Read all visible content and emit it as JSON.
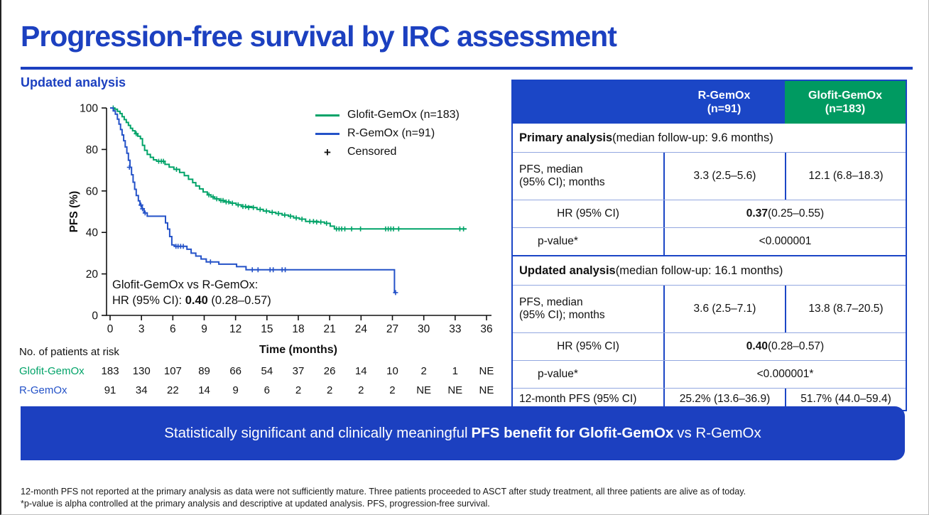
{
  "title": "Progression-free survival by IRC assessment",
  "subtitle": "Updated analysis",
  "colors": {
    "brand_blue": "#1c40c0",
    "table_blue": "#1b46c6",
    "header_green": "#009a61",
    "curve_green": "#00a368",
    "curve_blue": "#2452c8"
  },
  "chart_data": {
    "type": "line",
    "subtype": "kaplan-meier-step",
    "title": "",
    "xlabel": "Time (months)",
    "ylabel": "PFS (%)",
    "xlim": [
      0,
      36
    ],
    "ylim": [
      0,
      100
    ],
    "xticks": [
      0,
      3,
      6,
      9,
      12,
      15,
      18,
      21,
      24,
      27,
      30,
      33,
      36
    ],
    "yticks": [
      0,
      20,
      40,
      60,
      80,
      100
    ],
    "grid": false,
    "legend_position": "top-right-inside",
    "legend": [
      {
        "label": "Glofit-GemOx (n=183)",
        "marker": "line",
        "color": "#00a368"
      },
      {
        "label": "R-GemOx (n=91)",
        "marker": "line",
        "color": "#2452c8"
      },
      {
        "label": "Censored",
        "marker": "+",
        "color": "#111111"
      }
    ],
    "annotation": {
      "line1": "Glofit-GemOx vs R-GemOx:",
      "line2_prefix": "HR (95% CI): ",
      "line2_bold": "0.40",
      "line2_suffix": " (0.28–0.57)"
    },
    "series": [
      {
        "name": "Glofit-GemOx (n=183)",
        "color": "#00a368",
        "steps": [
          [
            0,
            100
          ],
          [
            0.4,
            99.4
          ],
          [
            0.7,
            98.4
          ],
          [
            0.95,
            97.3
          ],
          [
            1.15,
            95.8
          ],
          [
            1.35,
            94.4
          ],
          [
            1.55,
            93
          ],
          [
            1.75,
            91.6
          ],
          [
            1.95,
            90.2
          ],
          [
            2.15,
            89
          ],
          [
            2.4,
            87.6
          ],
          [
            2.65,
            86.4
          ],
          [
            2.9,
            85.2
          ],
          [
            3.1,
            82
          ],
          [
            3.3,
            79.6
          ],
          [
            3.55,
            77.6
          ],
          [
            3.85,
            76.2
          ],
          [
            4.15,
            75
          ],
          [
            4.45,
            74.3
          ],
          [
            5.25,
            72.8
          ],
          [
            5.65,
            71.5
          ],
          [
            6.1,
            70.4
          ],
          [
            6.65,
            68.9
          ],
          [
            7.1,
            67.4
          ],
          [
            7.5,
            65.6
          ],
          [
            7.9,
            64
          ],
          [
            8.2,
            62.4
          ],
          [
            8.55,
            61
          ],
          [
            8.9,
            59.5
          ],
          [
            9.3,
            58.1
          ],
          [
            9.65,
            57.1
          ],
          [
            10,
            56.2
          ],
          [
            10.45,
            55.4
          ],
          [
            10.95,
            54.7
          ],
          [
            11.5,
            54.1
          ],
          [
            12.05,
            53.3
          ],
          [
            12.55,
            52.5
          ],
          [
            13.55,
            52
          ],
          [
            14.05,
            51.1
          ],
          [
            14.65,
            50.3
          ],
          [
            15.25,
            49.7
          ],
          [
            15.85,
            49.1
          ],
          [
            16.45,
            48.4
          ],
          [
            17.05,
            47.8
          ],
          [
            17.55,
            47
          ],
          [
            18.1,
            46.4
          ],
          [
            18.7,
            45.3
          ],
          [
            19.9,
            45
          ],
          [
            20.5,
            44.4
          ],
          [
            21.05,
            43
          ],
          [
            21.45,
            41.7
          ],
          [
            34.1,
            41.7
          ]
        ],
        "censors": [
          [
            0.3,
            100
          ],
          [
            2.5,
            87.6
          ],
          [
            4.65,
            74.3
          ],
          [
            4.9,
            74.3
          ],
          [
            5.1,
            74.3
          ],
          [
            6.35,
            70.4
          ],
          [
            9.45,
            58.1
          ],
          [
            9.85,
            57.1
          ],
          [
            10.2,
            56.2
          ],
          [
            10.6,
            55.4
          ],
          [
            10.8,
            55.4
          ],
          [
            11.1,
            54.7
          ],
          [
            11.35,
            54.7
          ],
          [
            11.7,
            54.1
          ],
          [
            12.25,
            53.3
          ],
          [
            12.7,
            52.5
          ],
          [
            12.95,
            52.5
          ],
          [
            13.25,
            52
          ],
          [
            13.7,
            52
          ],
          [
            14.35,
            51.1
          ],
          [
            14.95,
            50.3
          ],
          [
            15.5,
            49.7
          ],
          [
            16.1,
            49.1
          ],
          [
            16.7,
            48.4
          ],
          [
            17.25,
            47.8
          ],
          [
            17.8,
            47
          ],
          [
            18.35,
            46.4
          ],
          [
            19.1,
            45.3
          ],
          [
            19.45,
            45.3
          ],
          [
            19.75,
            45
          ],
          [
            20.15,
            45
          ],
          [
            20.7,
            44.4
          ],
          [
            21.65,
            41.7
          ],
          [
            21.9,
            41.7
          ],
          [
            22.15,
            41.7
          ],
          [
            22.45,
            41.7
          ],
          [
            23.1,
            41.7
          ],
          [
            23.95,
            41.7
          ],
          [
            26.35,
            41.7
          ],
          [
            26.6,
            41.7
          ],
          [
            26.85,
            41.7
          ],
          [
            27.1,
            41.7
          ],
          [
            27.6,
            41.7
          ],
          [
            33.45,
            41.7
          ],
          [
            33.8,
            41.7
          ]
        ]
      },
      {
        "name": "R-GemOx (n=91)",
        "color": "#2452c8",
        "steps": [
          [
            0,
            100
          ],
          [
            0.3,
            98.6
          ],
          [
            0.5,
            97
          ],
          [
            0.7,
            94.6
          ],
          [
            0.85,
            92.2
          ],
          [
            1,
            89.6
          ],
          [
            1.15,
            87
          ],
          [
            1.3,
            84.2
          ],
          [
            1.45,
            81.2
          ],
          [
            1.6,
            78.2
          ],
          [
            1.75,
            74.8
          ],
          [
            1.9,
            71.4
          ],
          [
            2.05,
            67.8
          ],
          [
            2.2,
            64.2
          ],
          [
            2.35,
            60.8
          ],
          [
            2.5,
            57.8
          ],
          [
            2.7,
            55.2
          ],
          [
            2.85,
            53.2
          ],
          [
            3.05,
            51.4
          ],
          [
            3.25,
            49.4
          ],
          [
            3.55,
            47.8
          ],
          [
            5.3,
            44.6
          ],
          [
            5.5,
            41.6
          ],
          [
            5.7,
            38
          ],
          [
            5.9,
            34
          ],
          [
            6.15,
            33.3
          ],
          [
            7.35,
            31.9
          ],
          [
            7.75,
            30
          ],
          [
            8.2,
            28.6
          ],
          [
            8.7,
            27.2
          ],
          [
            9.2,
            25.8
          ],
          [
            10.4,
            24.7
          ],
          [
            12.1,
            23.5
          ],
          [
            13,
            22
          ],
          [
            27.2,
            22
          ],
          [
            27.2,
            11
          ],
          [
            27.35,
            11
          ]
        ],
        "censors": [
          [
            1.85,
            71.4
          ],
          [
            2.95,
            53.2
          ],
          [
            3.1,
            51.4
          ],
          [
            3.35,
            49.4
          ],
          [
            6.3,
            33.3
          ],
          [
            6.5,
            33.3
          ],
          [
            6.75,
            33.3
          ],
          [
            7,
            33.3
          ],
          [
            9.6,
            25.8
          ],
          [
            13.6,
            22
          ],
          [
            14.15,
            22
          ],
          [
            15.3,
            22
          ],
          [
            15.6,
            22
          ],
          [
            16.45,
            22
          ],
          [
            16.75,
            22
          ],
          [
            27.3,
            11
          ]
        ]
      }
    ]
  },
  "risk_table": {
    "heading": "No. of patients at risk",
    "rows": [
      {
        "label": "Glofit-GemOx",
        "color": "#00a368",
        "values": [
          "183",
          "130",
          "107",
          "89",
          "66",
          "54",
          "37",
          "26",
          "14",
          "10",
          "2",
          "1",
          "NE"
        ]
      },
      {
        "label": "R-GemOx",
        "color": "#2452c8",
        "values": [
          "91",
          "34",
          "22",
          "14",
          "9",
          "6",
          "2",
          "2",
          "2",
          "2",
          "NE",
          "NE",
          "NE"
        ]
      }
    ]
  },
  "results_table": {
    "header": [
      {
        "line1": "",
        "line2": "",
        "bg": "hblue"
      },
      {
        "line1": "R-GemOx",
        "line2": "(n=91)",
        "bg": "hblue"
      },
      {
        "line1": "Glofit-GemOx",
        "line2": "(n=183)",
        "bg": "hgreen"
      }
    ],
    "rows": [
      {
        "type": "section",
        "bold": "Primary analysis",
        "rest": " (median follow-up: 9.6 months)",
        "h": 40
      },
      {
        "type": "data",
        "label": "PFS, median\n(95% CI); months",
        "label_align": "left",
        "values": [
          "3.3 (2.5–5.6)",
          "12.1 (6.8–18.3)"
        ],
        "h": 66
      },
      {
        "type": "merged",
        "label": "HR (95% CI)",
        "label_align": "center",
        "value_bold": "0.37",
        "value": " (0.25–0.55)",
        "h": 38
      },
      {
        "type": "merged",
        "label": "p-value*",
        "label_align": "leftpad",
        "value_bold": "",
        "value": "<0.000001",
        "h": 38
      },
      {
        "type": "section",
        "bold": "Updated analysis",
        "rest": " (median follow-up: 16.1 months)",
        "h": 40
      },
      {
        "type": "data",
        "label": "PFS, median\n(95% CI); months",
        "label_align": "left",
        "values": [
          "3.6 (2.5–7.1)",
          "13.8 (8.7–20.5)"
        ],
        "h": 66
      },
      {
        "type": "merged",
        "label": "HR (95% CI)",
        "label_align": "center",
        "value_bold": "0.40",
        "value": " (0.28–0.57)",
        "h": 38
      },
      {
        "type": "merged",
        "label": "p-value*",
        "label_align": "leftpad",
        "value_bold": "",
        "value": "<0.000001*",
        "h": 38
      },
      {
        "type": "data",
        "label": "12-month PFS (95% CI)",
        "label_align": "left",
        "values": [
          "25.2% (13.6–36.9)",
          "51.7% (44.0–59.4)"
        ],
        "h": 30
      }
    ]
  },
  "banner": {
    "pre": "Statistically significant and clinically meaningful",
    "bold": "PFS benefit for Glofit-GemOx",
    "post": "vs R-GemOx"
  },
  "footnotes": {
    "line1": "12-month PFS not reported at the primary analysis as data were not sufficiently mature. Three patients proceeded to ASCT after study treatment, all three patients are alive as of today.",
    "line2": "*p-value is alpha controlled at the primary analysis and descriptive at updated analysis. PFS, progression-free survival."
  }
}
